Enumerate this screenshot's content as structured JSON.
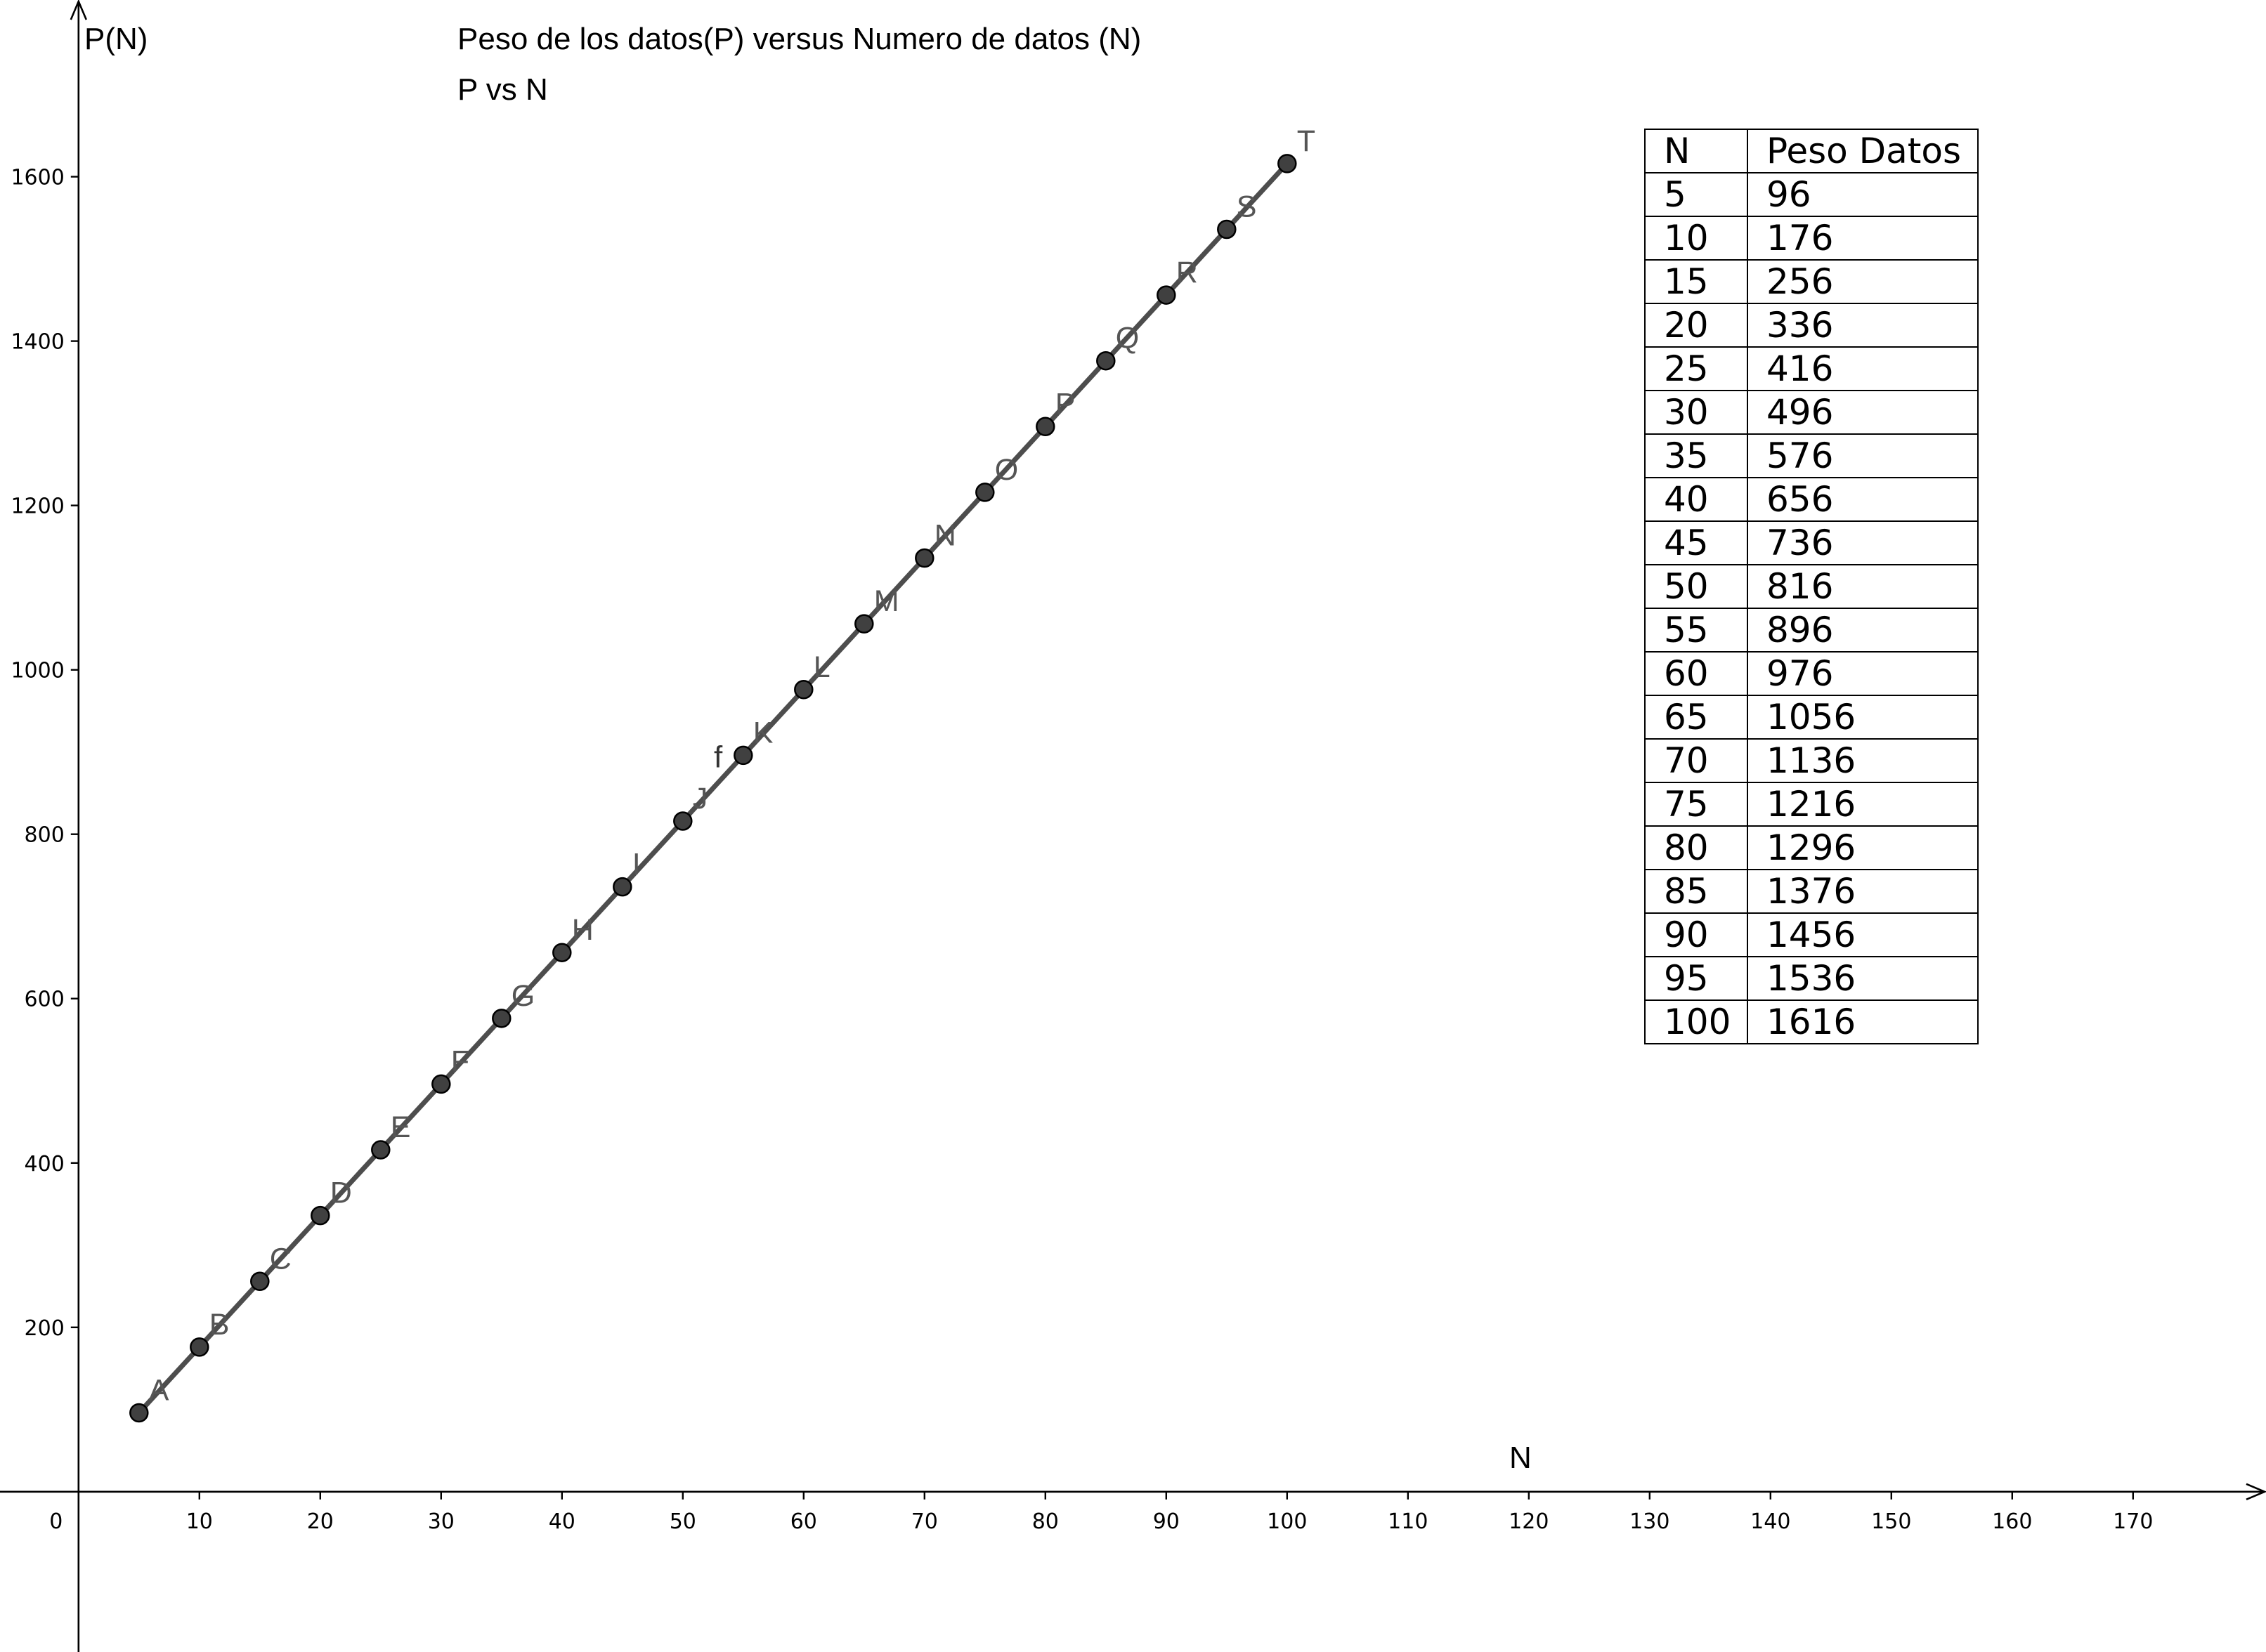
{
  "chart_data": {
    "type": "line",
    "title": "Peso de los datos(P) versus  Numero de datos (N)",
    "subtitle": "P vs N",
    "xlabel": "N",
    "ylabel": "P(N)",
    "xlim": [
      -6.5,
      181
    ],
    "ylim": [
      -195,
      1815
    ],
    "x_ticks": [
      0,
      10,
      20,
      30,
      40,
      50,
      60,
      70,
      80,
      90,
      100,
      110,
      120,
      130,
      140,
      150,
      160,
      170
    ],
    "y_ticks": [
      200,
      400,
      600,
      800,
      1000,
      1200,
      1400,
      1600
    ],
    "grid": false,
    "function_label": "f",
    "series": [
      {
        "points": [
          {
            "label": "A",
            "x": 5,
            "y": 96
          },
          {
            "label": "B",
            "x": 10,
            "y": 176
          },
          {
            "label": "C",
            "x": 15,
            "y": 256
          },
          {
            "label": "D",
            "x": 20,
            "y": 336
          },
          {
            "label": "E",
            "x": 25,
            "y": 416
          },
          {
            "label": "F",
            "x": 30,
            "y": 496
          },
          {
            "label": "G",
            "x": 35,
            "y": 576
          },
          {
            "label": "H",
            "x": 40,
            "y": 656
          },
          {
            "label": "I",
            "x": 45,
            "y": 736
          },
          {
            "label": "J",
            "x": 50,
            "y": 816
          },
          {
            "label": "K",
            "x": 55,
            "y": 896
          },
          {
            "label": "L",
            "x": 60,
            "y": 976
          },
          {
            "label": "M",
            "x": 65,
            "y": 1056
          },
          {
            "label": "N",
            "x": 70,
            "y": 1136
          },
          {
            "label": "O",
            "x": 75,
            "y": 1216
          },
          {
            "label": "P",
            "x": 80,
            "y": 1296
          },
          {
            "label": "Q",
            "x": 85,
            "y": 1376
          },
          {
            "label": "R",
            "x": 90,
            "y": 1456
          },
          {
            "label": "S",
            "x": 95,
            "y": 1536
          },
          {
            "label": "T",
            "x": 100,
            "y": 1616
          }
        ]
      }
    ],
    "table": {
      "headers": [
        "N",
        "Peso Datos"
      ],
      "rows": [
        [
          "5",
          "96"
        ],
        [
          "10",
          "176"
        ],
        [
          "15",
          "256"
        ],
        [
          "20",
          "336"
        ],
        [
          "25",
          "416"
        ],
        [
          "30",
          "496"
        ],
        [
          "35",
          "576"
        ],
        [
          "40",
          "656"
        ],
        [
          "45",
          "736"
        ],
        [
          "50",
          "816"
        ],
        [
          "55",
          "896"
        ],
        [
          "60",
          "976"
        ],
        [
          "65",
          "1056"
        ],
        [
          "70",
          "1136"
        ],
        [
          "75",
          "1216"
        ],
        [
          "80",
          "1296"
        ],
        [
          "85",
          "1376"
        ],
        [
          "90",
          "1456"
        ],
        [
          "95",
          "1536"
        ],
        [
          "100",
          "1616"
        ]
      ]
    }
  },
  "colors": {
    "line": "#4d4d4d",
    "point_fill": "#404040",
    "point_label": "#555555",
    "axis": "#000000",
    "background": "#ffffff"
  }
}
